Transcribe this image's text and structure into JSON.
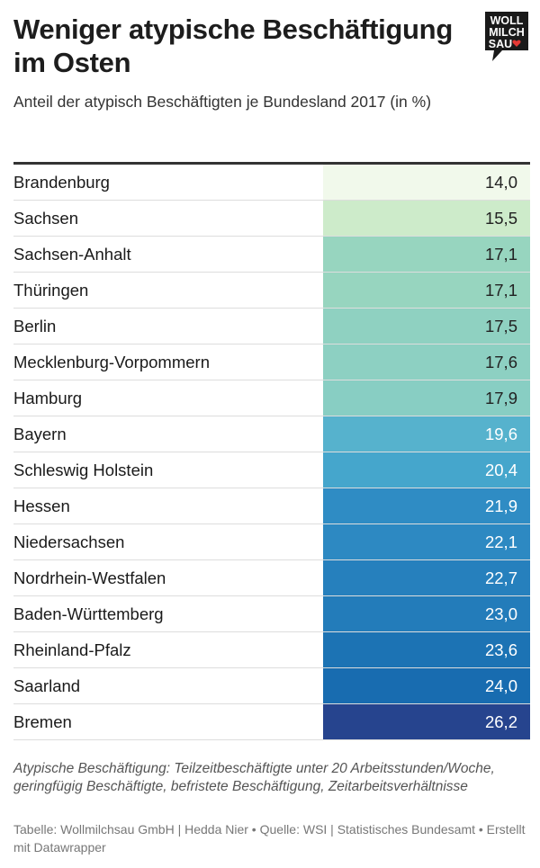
{
  "header": {
    "title": "Weniger atypische Beschäftigung im Osten",
    "subtitle": "Anteil der atypisch Beschäftigten je Bundesland 2017 (in %)",
    "logo_lines": [
      "WOLL",
      "MILCH",
      "SAU"
    ]
  },
  "chart_data": {
    "type": "table",
    "unit": "%",
    "rows": [
      {
        "label": "Brandenburg",
        "value": 14.0,
        "display": "14,0",
        "color": "#f1f9eb",
        "text_color": "#222222"
      },
      {
        "label": "Sachsen",
        "value": 15.5,
        "display": "15,5",
        "color": "#cdebca",
        "text_color": "#222222"
      },
      {
        "label": "Sachsen-Anhalt",
        "value": 17.1,
        "display": "17,1",
        "color": "#97d5bf",
        "text_color": "#222222"
      },
      {
        "label": "Thüringen",
        "value": 17.1,
        "display": "17,1",
        "color": "#97d5bf",
        "text_color": "#222222"
      },
      {
        "label": "Berlin",
        "value": 17.5,
        "display": "17,5",
        "color": "#8fd1c1",
        "text_color": "#222222"
      },
      {
        "label": "Mecklenburg-Vorpommern",
        "value": 17.6,
        "display": "17,6",
        "color": "#8dd0c2",
        "text_color": "#222222"
      },
      {
        "label": "Hamburg",
        "value": 17.9,
        "display": "17,9",
        "color": "#88cec3",
        "text_color": "#222222"
      },
      {
        "label": "Bayern",
        "value": 19.6,
        "display": "19,6",
        "color": "#56b2cd",
        "text_color": "#ffffff"
      },
      {
        "label": "Schleswig Holstein",
        "value": 20.4,
        "display": "20,4",
        "color": "#45a6cc",
        "text_color": "#ffffff"
      },
      {
        "label": "Hessen",
        "value": 21.9,
        "display": "21,9",
        "color": "#2f8cc4",
        "text_color": "#ffffff"
      },
      {
        "label": "Niedersachsen",
        "value": 22.1,
        "display": "22,1",
        "color": "#2d89c2",
        "text_color": "#ffffff"
      },
      {
        "label": "Nordrhein-Westfalen",
        "value": 22.7,
        "display": "22,7",
        "color": "#2680bd",
        "text_color": "#ffffff"
      },
      {
        "label": "Baden-Württemberg",
        "value": 23.0,
        "display": "23,0",
        "color": "#237cba",
        "text_color": "#ffffff"
      },
      {
        "label": "Rheinland-Pfalz",
        "value": 23.6,
        "display": "23,6",
        "color": "#1c73b4",
        "text_color": "#ffffff"
      },
      {
        "label": "Saarland",
        "value": 24.0,
        "display": "24,0",
        "color": "#186cb0",
        "text_color": "#ffffff"
      },
      {
        "label": "Bremen",
        "value": 26.2,
        "display": "26,2",
        "color": "#26448e",
        "text_color": "#ffffff"
      }
    ]
  },
  "footer": {
    "note": "Atypische Beschäftigung: Teilzeitbeschäftigte unter 20 Arbeitsstunden/Woche, geringfügig Beschäftigte, befristete Beschäftigung, Zeitarbeitsverhältnisse",
    "source": "Tabelle: Wollmilchsau GmbH | Hedda Nier • Quelle: WSI | Statistisches Bundesamt • Erstellt mit Datawrapper"
  },
  "colors": {
    "logo_bg": "#1a1a1a",
    "heart": "#e53935"
  }
}
